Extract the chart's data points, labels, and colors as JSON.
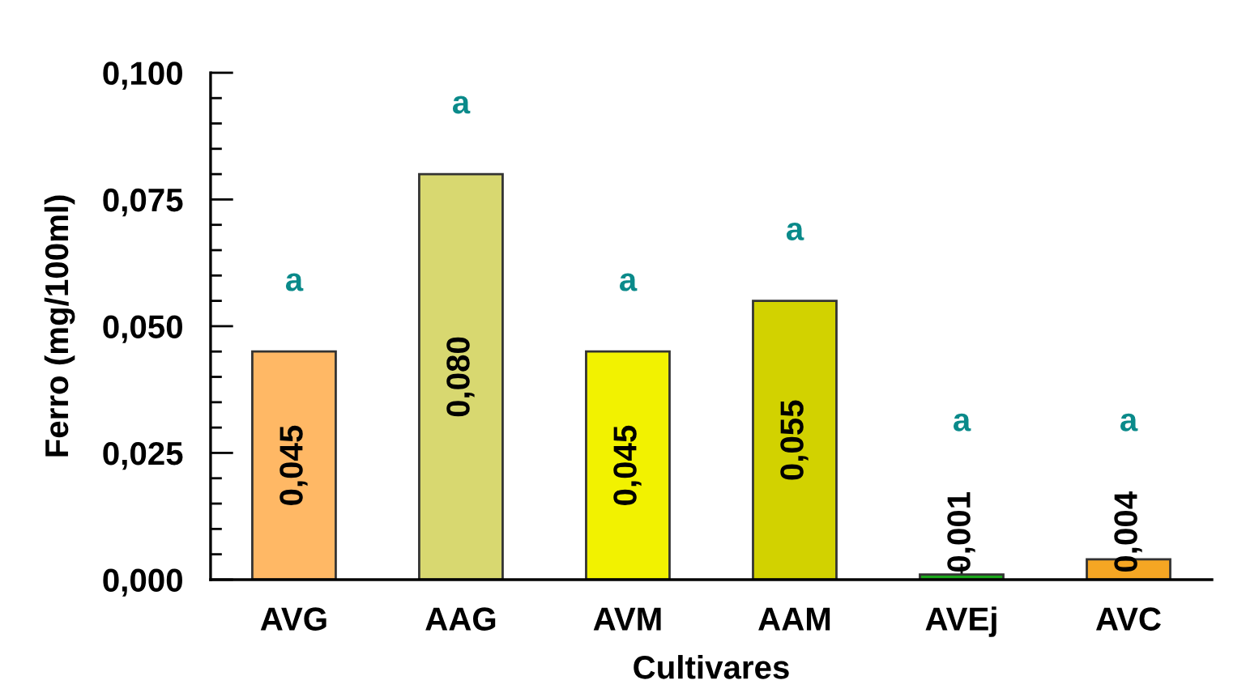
{
  "chart_data": {
    "type": "bar",
    "xlabel": "Cultivares",
    "ylabel": "Ferro (mg/100ml)",
    "categories": [
      "AVG",
      "AAG",
      "AVM",
      "AAM",
      "AVEj",
      "AVC"
    ],
    "values": [
      0.045,
      0.08,
      0.045,
      0.055,
      0.001,
      0.004
    ],
    "colors": [
      "#ffb865",
      "#d8d870",
      "#f2f200",
      "#d2d200",
      "#1aa81a",
      "#f5a623"
    ],
    "value_labels": [
      "0,045",
      "0,080",
      "0,045",
      "0,055",
      "0,001",
      "0,004"
    ],
    "ylim": [
      0,
      0.1
    ],
    "yticks": [
      {
        "value": 0,
        "label": "0,000"
      },
      {
        "value": 0.005,
        "label": null
      },
      {
        "value": 0.01,
        "label": null
      },
      {
        "value": 0.015,
        "label": null
      },
      {
        "value": 0.02,
        "label": null
      },
      {
        "value": 0.025,
        "label": "0,025"
      },
      {
        "value": 0.03,
        "label": null
      },
      {
        "value": 0.035,
        "label": null
      },
      {
        "value": 0.04,
        "label": null
      },
      {
        "value": 0.045,
        "label": null
      },
      {
        "value": 0.05,
        "label": "0,050"
      },
      {
        "value": 0.055,
        "label": null
      },
      {
        "value": 0.06,
        "label": null
      },
      {
        "value": 0.065,
        "label": null
      },
      {
        "value": 0.07,
        "label": null
      },
      {
        "value": 0.075,
        "label": "0,075"
      },
      {
        "value": 0.08,
        "label": null
      },
      {
        "value": 0.085,
        "label": null
      },
      {
        "value": 0.09,
        "label": null
      },
      {
        "value": 0.095,
        "label": null
      },
      {
        "value": 0.1,
        "label": "0,100"
      }
    ],
    "annotations": [
      "a",
      "a",
      "a",
      "a",
      "a",
      "a"
    ]
  }
}
